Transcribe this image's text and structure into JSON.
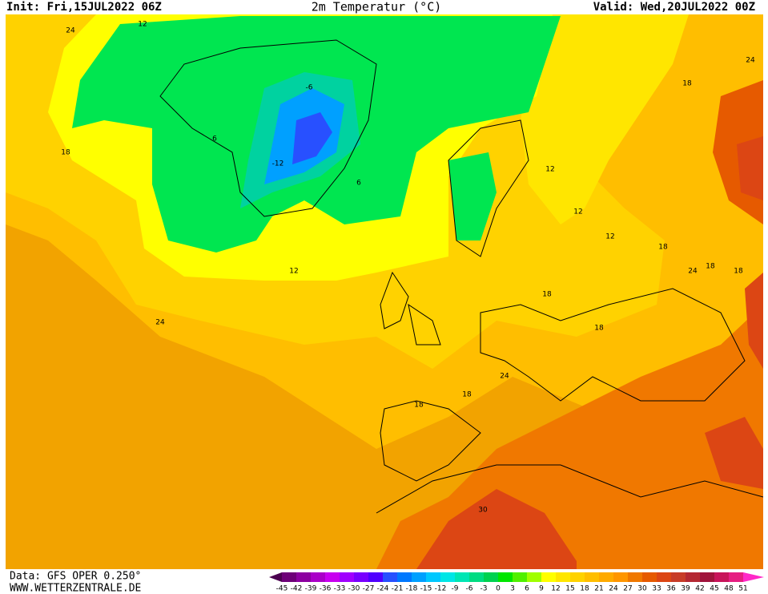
{
  "header": {
    "init": "Init: Fri,15JUL2022 06Z",
    "title": "2m Temperatur (°C)",
    "valid": "Valid: Wed,20JUL2022 00Z"
  },
  "map": {
    "contour_labels": [
      "24",
      "12",
      "24",
      "18",
      "18",
      "6",
      "-6",
      "-12",
      "6",
      "12",
      "12",
      "12",
      "18",
      "12",
      "24",
      "18",
      "18",
      "18",
      "18",
      "24",
      "18",
      "18",
      "30",
      "24"
    ]
  },
  "footer": {
    "source": "Data: GFS OPER 0.250°",
    "url": "WWW.WETTERZENTRALE.DE"
  },
  "colorbar": {
    "labels": [
      -45,
      -42,
      -39,
      -36,
      -33,
      -30,
      -27,
      -24,
      -21,
      -18,
      -15,
      -12,
      -9,
      -6,
      -3,
      0,
      3,
      6,
      9,
      12,
      15,
      18,
      21,
      24,
      27,
      30,
      33,
      36,
      39,
      42,
      45,
      48,
      51
    ],
    "colors": [
      "#4b0050",
      "#6e0078",
      "#8c00a0",
      "#aa00c8",
      "#c800f0",
      "#a000ff",
      "#7800ff",
      "#5000ff",
      "#2850ff",
      "#0078ff",
      "#00a0ff",
      "#00c8ff",
      "#00e6e6",
      "#00e6b4",
      "#00dc82",
      "#00d250",
      "#00e600",
      "#50f000",
      "#a0ff00",
      "#ffff00",
      "#ffe600",
      "#ffd200",
      "#ffbe00",
      "#ffaa00",
      "#ff9600",
      "#f07800",
      "#e65a00",
      "#dc4614",
      "#c83c28",
      "#b42832",
      "#a0143c",
      "#c8145a",
      "#e61e82",
      "#ff28c8"
    ]
  }
}
